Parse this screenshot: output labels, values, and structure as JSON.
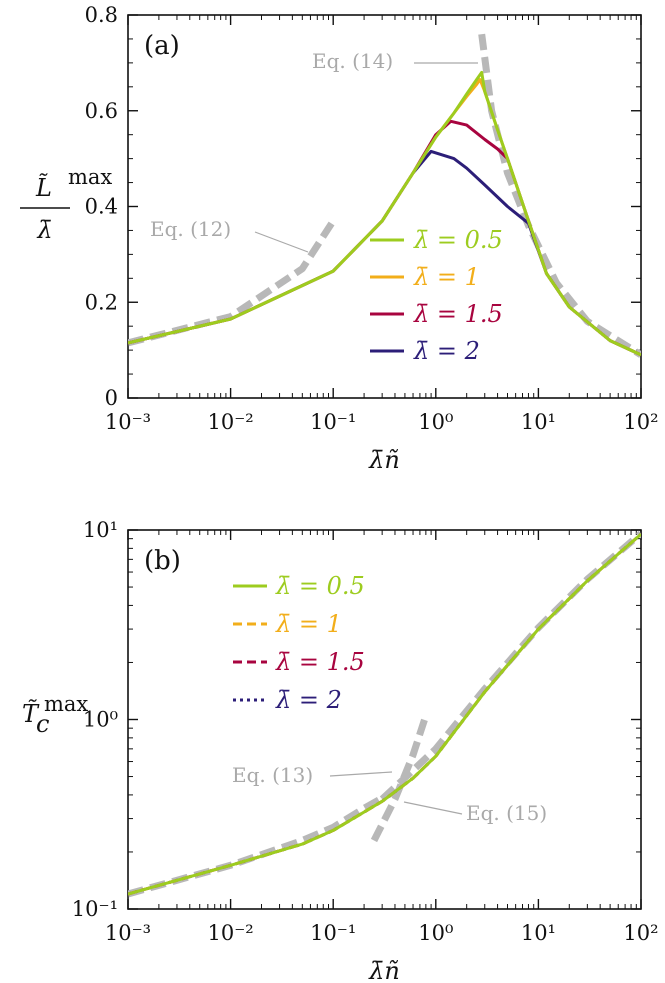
{
  "figure": {
    "panels": [
      "(a)",
      "(b)"
    ],
    "x_axis_label": "λ̄ñ",
    "colors": {
      "lambda_0.5": "#9dcc1f",
      "lambda_1": "#f2ae1a",
      "lambda_1.5": "#a8043f",
      "lambda_2": "#2c1e78",
      "asymptote": "#b8b8b8",
      "annotation": "#a9a9a9"
    }
  },
  "chart_data": [
    {
      "type": "line",
      "panel": "(a)",
      "ylabel": "L̃ max / λ̄",
      "xlabel": "λ̄ñ",
      "x_scale": "log",
      "xlim": [
        0.001,
        100
      ],
      "ylim": [
        0,
        0.8
      ],
      "x_ticks": [
        "10⁻³",
        "10⁻²",
        "10⁻¹",
        "10⁰",
        "10¹",
        "10²"
      ],
      "y_ticks": [
        "0",
        "0.2",
        "0.4",
        "0.6",
        "0.8"
      ],
      "legend": [
        "λ̄ = 0.5",
        "λ̄ = 1",
        "λ̄ = 1.5",
        "λ̄ = 2"
      ],
      "annotations": [
        "Eq. (12)",
        "Eq. (14)"
      ],
      "series": [
        {
          "name": "λ̄ = 0.5",
          "style": "solid",
          "x": [
            0.001,
            0.01,
            0.1,
            0.3,
            0.6,
            1.0,
            1.5,
            2.0,
            2.5,
            2.8,
            3.0,
            4.0,
            5.0,
            8.0,
            12.0,
            20.0,
            50.0,
            100.0
          ],
          "y": [
            0.115,
            0.165,
            0.265,
            0.37,
            0.47,
            0.545,
            0.595,
            0.635,
            0.665,
            0.68,
            0.64,
            0.56,
            0.5,
            0.37,
            0.26,
            0.19,
            0.12,
            0.09
          ]
        },
        {
          "name": "λ̄ = 1",
          "style": "solid",
          "x": [
            0.001,
            0.01,
            0.1,
            0.3,
            0.6,
            1.0,
            1.5,
            2.0,
            2.5,
            2.7,
            3.0,
            4.0,
            5.0,
            8.0,
            12.0,
            20.0,
            50.0,
            100.0
          ],
          "y": [
            0.115,
            0.165,
            0.265,
            0.37,
            0.47,
            0.545,
            0.595,
            0.63,
            0.655,
            0.665,
            0.64,
            0.56,
            0.5,
            0.37,
            0.26,
            0.19,
            0.12,
            0.09
          ]
        },
        {
          "name": "λ̄ = 1.5",
          "style": "solid",
          "x": [
            0.001,
            0.01,
            0.1,
            0.3,
            0.6,
            1.0,
            1.4,
            2.0,
            3.0,
            4.0,
            5.0,
            8.0,
            12.0,
            20.0,
            50.0,
            100.0
          ],
          "y": [
            0.115,
            0.165,
            0.265,
            0.37,
            0.47,
            0.55,
            0.578,
            0.57,
            0.54,
            0.52,
            0.5,
            0.37,
            0.26,
            0.19,
            0.12,
            0.09
          ]
        },
        {
          "name": "λ̄ = 2",
          "style": "solid",
          "x": [
            0.001,
            0.01,
            0.1,
            0.3,
            0.6,
            0.9,
            1.5,
            2.0,
            3.0,
            5.0,
            8.0,
            12.0,
            20.0,
            50.0,
            100.0
          ],
          "y": [
            0.115,
            0.165,
            0.265,
            0.37,
            0.47,
            0.515,
            0.5,
            0.48,
            0.445,
            0.4,
            0.365,
            0.26,
            0.19,
            0.12,
            0.09
          ]
        },
        {
          "name": "Eq. (12)",
          "style": "dashed-thick",
          "x": [
            0.001,
            0.01,
            0.05,
            0.1
          ],
          "y": [
            0.115,
            0.17,
            0.27,
            0.37
          ]
        },
        {
          "name": "Eq. (14)",
          "style": "dashed-thick",
          "x": [
            2.8,
            3.5,
            5.0,
            8.0,
            15.0,
            30.0,
            100.0
          ],
          "y": [
            0.76,
            0.6,
            0.47,
            0.36,
            0.24,
            0.16,
            0.09
          ]
        }
      ]
    },
    {
      "type": "line",
      "panel": "(b)",
      "ylabel": "T̃c max",
      "xlabel": "λ̄ñ",
      "x_scale": "log",
      "y_scale": "log",
      "xlim": [
        0.001,
        100
      ],
      "ylim": [
        0.1,
        10
      ],
      "x_ticks": [
        "10⁻³",
        "10⁻²",
        "10⁻¹",
        "10⁰",
        "10¹",
        "10²"
      ],
      "y_ticks": [
        "10⁻¹",
        "10⁰",
        "10¹"
      ],
      "legend": [
        "λ̄ = 0.5",
        "λ̄ = 1",
        "λ̄ = 1.5",
        "λ̄ = 2"
      ],
      "annotations": [
        "Eq. (13)",
        "Eq. (15)"
      ],
      "series": [
        {
          "name": "λ̄ = 0.5",
          "style": "solid",
          "x": [
            0.001,
            0.01,
            0.05,
            0.1,
            0.3,
            0.6,
            1.0,
            3.0,
            10.0,
            30.0,
            100.0
          ],
          "y": [
            0.12,
            0.17,
            0.22,
            0.26,
            0.37,
            0.49,
            0.64,
            1.4,
            3.0,
            5.4,
            9.5
          ]
        },
        {
          "name": "λ̄ = 1",
          "style": "dashed",
          "x": [
            0.001,
            0.01,
            0.05,
            0.1,
            0.3,
            0.6,
            1.0,
            3.0,
            10.0,
            30.0,
            100.0
          ],
          "y": [
            0.12,
            0.17,
            0.22,
            0.26,
            0.37,
            0.49,
            0.64,
            1.4,
            3.0,
            5.4,
            9.5
          ]
        },
        {
          "name": "λ̄ = 1.5",
          "style": "dashed",
          "x": [
            0.001,
            0.01,
            0.05,
            0.1,
            0.3,
            0.6,
            1.0,
            3.0,
            10.0,
            30.0,
            100.0
          ],
          "y": [
            0.12,
            0.17,
            0.22,
            0.26,
            0.37,
            0.49,
            0.64,
            1.4,
            3.0,
            5.4,
            9.5
          ]
        },
        {
          "name": "λ̄ = 2",
          "style": "dotted",
          "x": [
            0.001,
            0.01,
            0.05,
            0.1,
            0.3,
            0.6,
            1.0,
            3.0,
            10.0,
            30.0,
            100.0
          ],
          "y": [
            0.12,
            0.17,
            0.22,
            0.26,
            0.37,
            0.49,
            0.64,
            1.4,
            3.0,
            5.4,
            9.5
          ]
        },
        {
          "name": "Eq. (13)",
          "style": "dashed-thick",
          "x": [
            0.001,
            0.01,
            0.05,
            0.1,
            0.2,
            0.4
          ],
          "y": [
            0.12,
            0.17,
            0.23,
            0.27,
            0.34,
            0.42
          ]
        },
        {
          "name": "Eq. (15)",
          "style": "dashed-thick",
          "x": [
            0.25,
            0.4,
            0.6,
            0.8
          ],
          "y": [
            0.23,
            0.38,
            0.65,
            1.05
          ]
        },
        {
          "name": "Eq. (15) high",
          "style": "dashed-thick",
          "x": [
            0.3,
            1.0,
            3.0,
            10.0,
            30.0,
            100.0
          ],
          "y": [
            0.38,
            0.7,
            1.45,
            3.05,
            5.5,
            9.6
          ]
        }
      ]
    }
  ]
}
